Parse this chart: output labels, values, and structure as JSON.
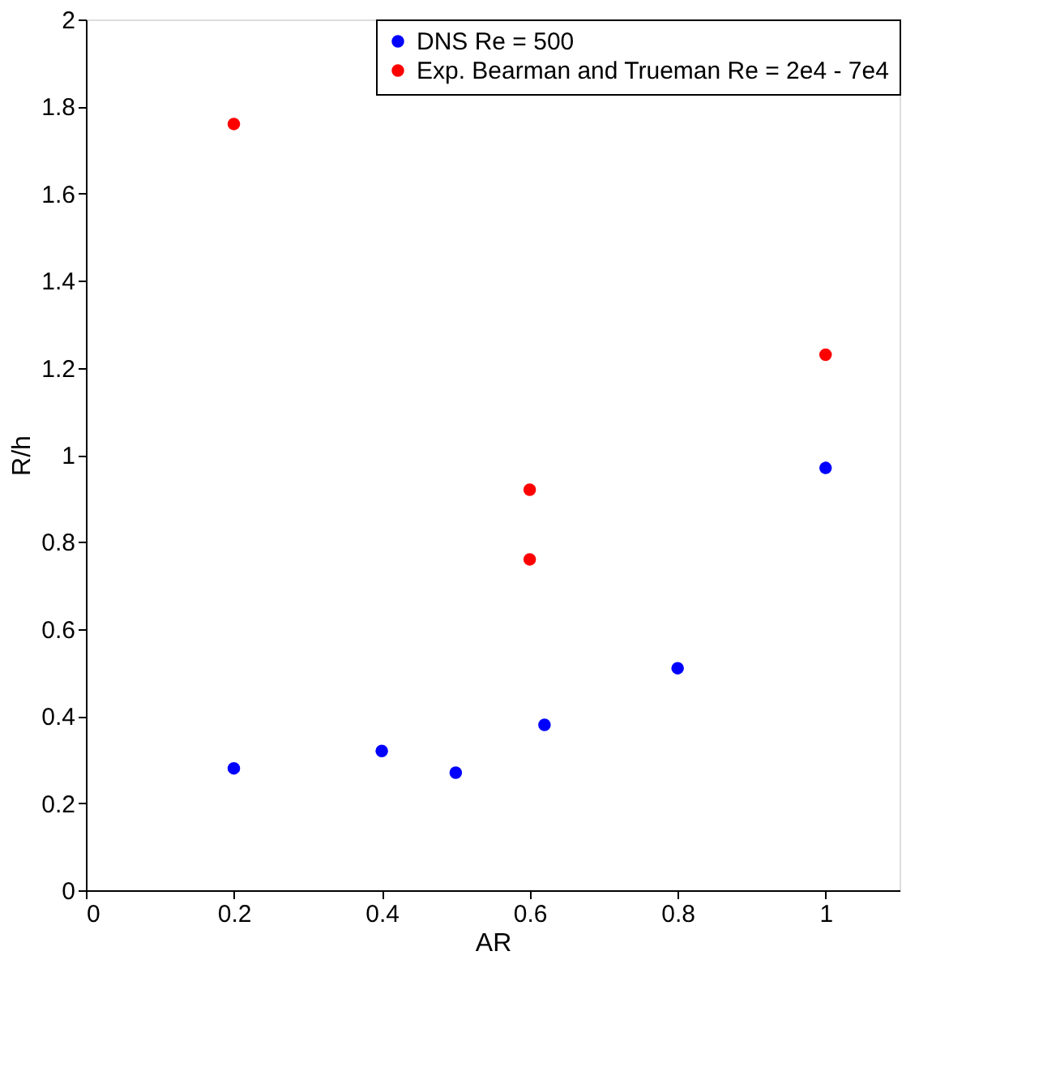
{
  "chart_data": {
    "type": "scatter",
    "xlabel": "AR",
    "ylabel": "R/h",
    "xlim": [
      0,
      1.1
    ],
    "xticks": [
      0,
      0.2,
      0.4,
      0.6,
      0.8,
      1
    ],
    "ylim": [
      0,
      2
    ],
    "yticks": [
      0,
      0.2,
      0.4,
      0.6,
      0.8,
      1,
      1.2,
      1.4,
      1.6,
      1.8,
      2
    ],
    "grid": false,
    "legend": "top right",
    "marker": "circle",
    "series": [
      {
        "name": "DNS Re = 500",
        "color": "#0000ff",
        "x": [
          0.2,
          0.4,
          0.5,
          0.62,
          0.8,
          1.0
        ],
        "values": [
          0.28,
          0.32,
          0.27,
          0.38,
          0.51,
          0.97
        ]
      },
      {
        "name": "Exp. Bearman and Trueman Re = 2e4 - 7e4",
        "color": "#ff0000",
        "x": [
          0.2,
          0.6,
          0.6,
          1.0
        ],
        "values": [
          1.76,
          0.92,
          0.76,
          1.23
        ]
      }
    ]
  }
}
